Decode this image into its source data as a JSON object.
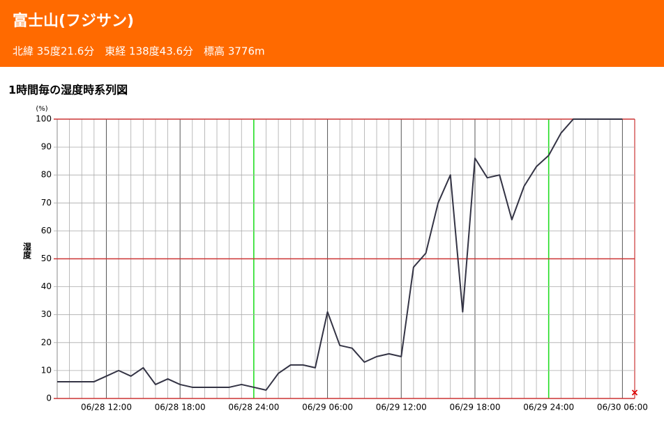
{
  "header": {
    "title": "富士山(フジサン)",
    "subtitle": "北緯 35度21.6分　東経 138度43.6分　標高 3776m"
  },
  "chart_data": {
    "type": "line",
    "title": "1時間毎の湿度時系列図",
    "y_label": "湿度",
    "y_unit": "(%)",
    "categories": [
      null,
      null,
      null,
      null,
      "06/28 12:00",
      null,
      null,
      null,
      null,
      null,
      "06/28 18:00",
      null,
      null,
      null,
      null,
      null,
      "06/28 24:00",
      null,
      null,
      null,
      null,
      null,
      "06/29 06:00",
      null,
      null,
      null,
      null,
      null,
      "06/29 12:00",
      null,
      null,
      null,
      null,
      null,
      "06/29 18:00",
      null,
      null,
      null,
      null,
      null,
      "06/29 24:00",
      null,
      null,
      null,
      null,
      null,
      "06/30 06:00",
      null
    ],
    "series": [
      {
        "name": "湿度",
        "color": "#333344",
        "values": [
          6,
          6,
          6,
          6,
          8,
          10,
          8,
          11,
          5,
          7,
          5,
          4,
          4,
          4,
          4,
          5,
          4,
          3,
          9,
          12,
          12,
          11,
          31,
          19,
          18,
          13,
          15,
          16,
          15,
          47,
          52,
          70,
          80,
          31,
          86,
          79,
          80,
          64,
          76,
          83,
          87,
          95,
          100,
          100,
          100,
          100,
          100,
          null
        ]
      }
    ],
    "ylim": [
      0,
      100
    ],
    "yticks": [
      0,
      10,
      20,
      30,
      40,
      50,
      60,
      70,
      80,
      90,
      100
    ],
    "grid": true
  }
}
